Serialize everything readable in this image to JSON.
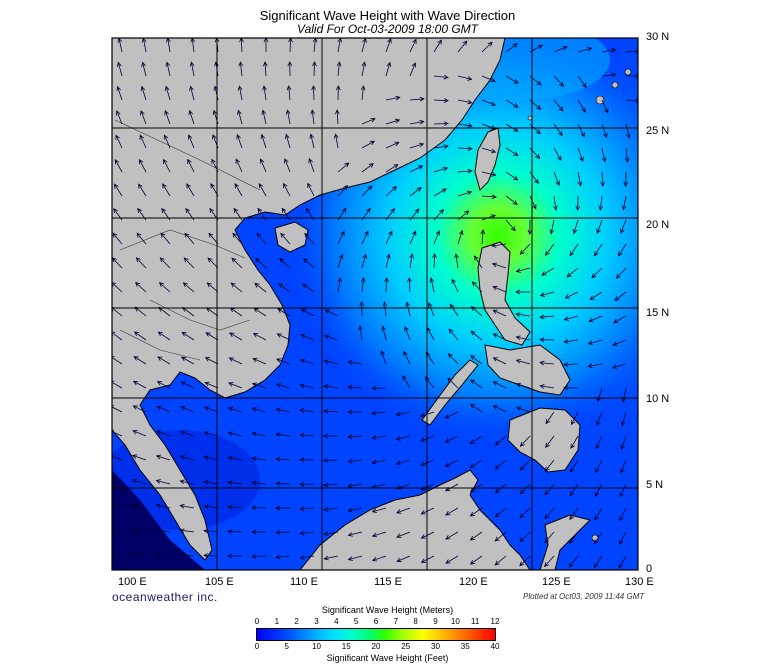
{
  "title": "Significant Wave Height with Wave Direction",
  "subtitle": "Valid For Oct-03-2009 18:00 GMT",
  "lon_labels": [
    "100 E",
    "105 E",
    "110 E",
    "115 E",
    "120 E",
    "125 E",
    "130 E"
  ],
  "lat_labels": [
    "30 N",
    "25 N",
    "20 N",
    "15 N",
    "10 N",
    "5 N",
    "0"
  ],
  "credit": "oceanweather inc.",
  "plotted": "Plotted at Oct03, 2009 11:44 GMT",
  "colorbar": {
    "meters_title": "Significant Wave Height (Meters)",
    "feet_title": "Significant Wave Height (Feet)",
    "meters_ticks": [
      "0",
      "1",
      "2",
      "3",
      "4",
      "5",
      "6",
      "7",
      "8",
      "9",
      "10",
      "11",
      "12"
    ],
    "feet_ticks": [
      "0",
      "5",
      "10",
      "15",
      "20",
      "25",
      "30",
      "35",
      "40"
    ]
  },
  "colors": {
    "land": "#c0c0c0",
    "ocean_base": "#0033ff",
    "peak": "#33ff00"
  }
}
